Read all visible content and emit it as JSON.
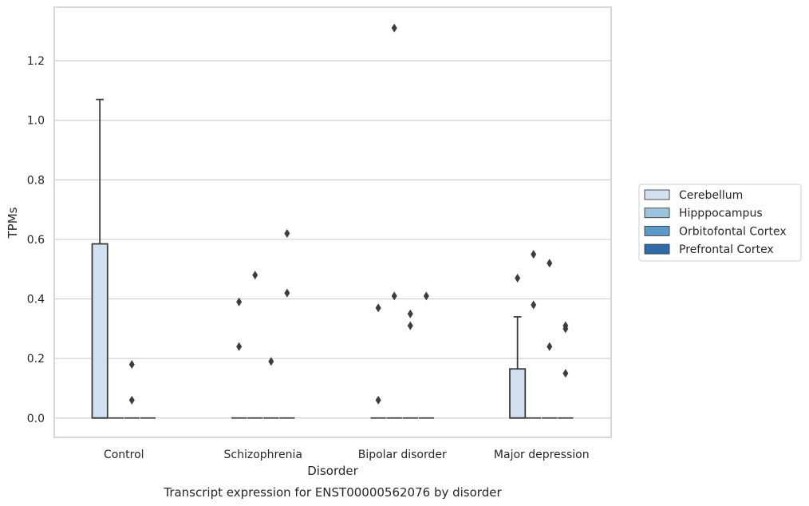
{
  "chart_data": {
    "type": "box",
    "title": "",
    "caption": "Transcript expression for ENST00000562076 by disorder",
    "xlabel": "Disorder",
    "ylabel": "TPMs",
    "ylim": [
      -0.065,
      1.38
    ],
    "yticks": [
      "0.0",
      "0.2",
      "0.4",
      "0.6",
      "0.8",
      "1.0",
      "1.2"
    ],
    "grid": "horizontal",
    "legend_position": "right",
    "categories": [
      "Control",
      "Schizophrenia",
      "Bipolar disorder",
      "Major depression"
    ],
    "series": [
      {
        "name": "Cerebellum",
        "color": "#d1e1f0",
        "boxes": [
          {
            "q1": 0,
            "median": 0,
            "q3": 0.585,
            "whisker_low": 0,
            "whisker_high": 1.07,
            "outliers": []
          },
          {
            "q1": 0,
            "median": 0,
            "q3": 0,
            "whisker_low": 0,
            "whisker_high": 0,
            "outliers": [
              0.24,
              0.39
            ]
          },
          {
            "q1": 0,
            "median": 0,
            "q3": 0,
            "whisker_low": 0,
            "whisker_high": 0,
            "outliers": [
              0.06,
              0.37
            ]
          },
          {
            "q1": 0,
            "median": 0,
            "q3": 0.165,
            "whisker_low": 0,
            "whisker_high": 0.34,
            "outliers": [
              0.47
            ]
          }
        ]
      },
      {
        "name": "Hipppocampus",
        "color": "#9ac4e0",
        "boxes": [
          {
            "q1": 0,
            "median": 0,
            "q3": 0,
            "whisker_low": 0,
            "whisker_high": 0,
            "outliers": []
          },
          {
            "q1": 0,
            "median": 0,
            "q3": 0,
            "whisker_low": 0,
            "whisker_high": 0,
            "outliers": [
              0.48
            ]
          },
          {
            "q1": 0,
            "median": 0,
            "q3": 0,
            "whisker_low": 0,
            "whisker_high": 0,
            "outliers": [
              0.41,
              1.31
            ]
          },
          {
            "q1": 0,
            "median": 0,
            "q3": 0,
            "whisker_low": 0,
            "whisker_high": 0,
            "outliers": [
              0.38,
              0.55
            ]
          }
        ]
      },
      {
        "name": "Orbitofontal Cortex",
        "color": "#5a9cc9",
        "boxes": [
          {
            "q1": 0,
            "median": 0,
            "q3": 0,
            "whisker_low": 0,
            "whisker_high": 0,
            "outliers": [
              0.06,
              0.18
            ]
          },
          {
            "q1": 0,
            "median": 0,
            "q3": 0,
            "whisker_low": 0,
            "whisker_high": 0,
            "outliers": [
              0.19
            ]
          },
          {
            "q1": 0,
            "median": 0,
            "q3": 0,
            "whisker_low": 0,
            "whisker_high": 0,
            "outliers": [
              0.31,
              0.35
            ]
          },
          {
            "q1": 0,
            "median": 0,
            "q3": 0,
            "whisker_low": 0,
            "whisker_high": 0,
            "outliers": [
              0.24,
              0.52
            ]
          }
        ]
      },
      {
        "name": "Prefrontal Cortex",
        "color": "#2d6ca8",
        "boxes": [
          {
            "q1": 0,
            "median": 0,
            "q3": 0,
            "whisker_low": 0,
            "whisker_high": 0,
            "outliers": []
          },
          {
            "q1": 0,
            "median": 0,
            "q3": 0,
            "whisker_low": 0,
            "whisker_high": 0,
            "outliers": [
              0.42,
              0.62
            ]
          },
          {
            "q1": 0,
            "median": 0,
            "q3": 0,
            "whisker_low": 0,
            "whisker_high": 0,
            "outliers": [
              0.41
            ]
          },
          {
            "q1": 0,
            "median": 0,
            "q3": 0,
            "whisker_low": 0,
            "whisker_high": 0,
            "outliers": [
              0.15,
              0.3,
              0.31
            ]
          }
        ]
      }
    ]
  }
}
